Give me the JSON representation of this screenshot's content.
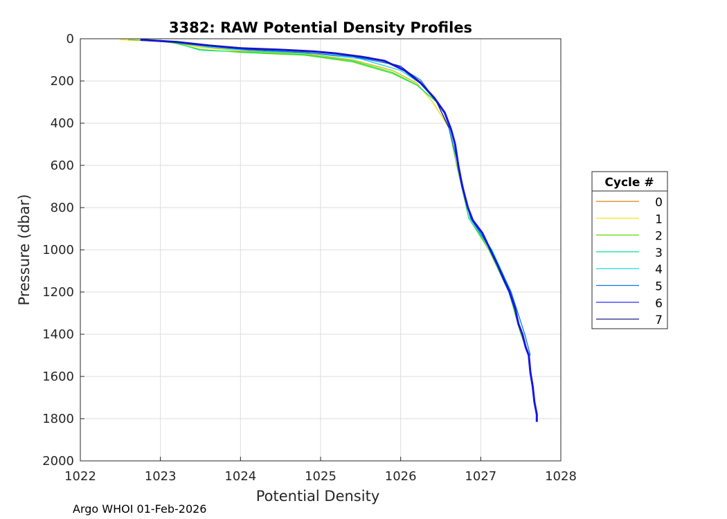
{
  "chart_data": {
    "type": "line",
    "title": "3382: RAW Potential Density Profiles",
    "xlabel": "Potential Density",
    "ylabel": "Pressure (dbar)",
    "xlim": [
      1022,
      1028
    ],
    "ylim": [
      0,
      2000
    ],
    "y_reversed": true,
    "grid": true,
    "x_ticks": [
      "1022",
      "1023",
      "1024",
      "1025",
      "1026",
      "1027",
      "1028"
    ],
    "y_ticks": [
      "0",
      "200",
      "400",
      "600",
      "800",
      "1000",
      "1200",
      "1400",
      "1600",
      "1800",
      "2000"
    ],
    "legend": {
      "title": "Cycle #",
      "position": "right"
    },
    "series": [
      {
        "name": "0",
        "color": "#d4840a",
        "points": [
          [
            1022.6,
            5
          ],
          [
            1023.1,
            12
          ],
          [
            1023.5,
            40
          ],
          [
            1024.0,
            58
          ],
          [
            1024.8,
            70
          ],
          [
            1025.4,
            100
          ],
          [
            1025.9,
            150
          ],
          [
            1026.2,
            210
          ],
          [
            1026.4,
            300
          ],
          [
            1026.6,
            420
          ]
        ]
      },
      {
        "name": "1",
        "color": "#f2e600",
        "points": [
          [
            1022.5,
            5
          ],
          [
            1023.0,
            12
          ],
          [
            1023.5,
            40
          ],
          [
            1024.0,
            60
          ],
          [
            1024.8,
            72
          ],
          [
            1025.4,
            102
          ],
          [
            1025.9,
            152
          ],
          [
            1026.2,
            212
          ],
          [
            1026.4,
            300
          ],
          [
            1026.6,
            420
          ]
        ]
      },
      {
        "name": "2",
        "color": "#5ed900",
        "points": [
          [
            1022.6,
            5
          ],
          [
            1023.1,
            14
          ],
          [
            1023.5,
            50
          ],
          [
            1024.0,
            65
          ],
          [
            1024.8,
            78
          ],
          [
            1025.4,
            110
          ],
          [
            1025.9,
            165
          ],
          [
            1026.2,
            220
          ],
          [
            1026.45,
            300
          ],
          [
            1026.6,
            420
          ],
          [
            1026.7,
            600
          ],
          [
            1026.85,
            850
          ],
          [
            1027.1,
            1000
          ],
          [
            1027.35,
            1200
          ],
          [
            1027.5,
            1400
          ],
          [
            1027.6,
            1500
          ]
        ]
      },
      {
        "name": "3",
        "color": "#00e68a",
        "points": [
          [
            1022.8,
            6
          ],
          [
            1023.2,
            20
          ],
          [
            1023.5,
            55
          ],
          [
            1024.0,
            62
          ],
          [
            1024.8,
            75
          ],
          [
            1025.4,
            105
          ],
          [
            1025.9,
            160
          ],
          [
            1026.2,
            218
          ],
          [
            1026.45,
            300
          ],
          [
            1026.6,
            420
          ],
          [
            1026.72,
            600
          ],
          [
            1026.85,
            850
          ],
          [
            1027.12,
            1000
          ],
          [
            1027.35,
            1200
          ],
          [
            1027.52,
            1400
          ],
          [
            1027.6,
            1500
          ]
        ]
      },
      {
        "name": "4",
        "color": "#00d5d5",
        "points": [
          [
            1022.8,
            6
          ],
          [
            1023.2,
            18
          ],
          [
            1023.6,
            40
          ],
          [
            1024.1,
            55
          ],
          [
            1024.9,
            70
          ],
          [
            1025.5,
            95
          ],
          [
            1026.0,
            150
          ],
          [
            1026.25,
            212
          ],
          [
            1026.45,
            300
          ],
          [
            1026.6,
            420
          ],
          [
            1026.72,
            600
          ],
          [
            1026.87,
            850
          ],
          [
            1027.14,
            1000
          ],
          [
            1027.38,
            1200
          ],
          [
            1027.55,
            1400
          ],
          [
            1027.62,
            1500
          ]
        ]
      },
      {
        "name": "5",
        "color": "#0a72e0",
        "points": [
          [
            1022.75,
            5
          ],
          [
            1023.2,
            15
          ],
          [
            1023.6,
            35
          ],
          [
            1024.1,
            52
          ],
          [
            1024.8,
            65
          ],
          [
            1025.4,
            85
          ],
          [
            1025.95,
            125
          ],
          [
            1026.25,
            195
          ],
          [
            1026.45,
            300
          ],
          [
            1026.6,
            420
          ],
          [
            1026.72,
            600
          ],
          [
            1026.87,
            850
          ],
          [
            1027.13,
            1000
          ],
          [
            1027.38,
            1200
          ],
          [
            1027.55,
            1400
          ],
          [
            1027.62,
            1500
          ]
        ]
      },
      {
        "name": "6",
        "color": "#1414f0",
        "points": [
          [
            1022.75,
            5
          ],
          [
            1023.2,
            15
          ],
          [
            1023.6,
            32
          ],
          [
            1024.0,
            45
          ],
          [
            1024.5,
            52
          ],
          [
            1024.9,
            60
          ],
          [
            1025.2,
            70
          ],
          [
            1025.5,
            85
          ],
          [
            1025.8,
            105
          ],
          [
            1026.05,
            150
          ],
          [
            1026.25,
            210
          ],
          [
            1026.42,
            280
          ],
          [
            1026.55,
            350
          ],
          [
            1026.63,
            430
          ],
          [
            1026.68,
            500
          ],
          [
            1026.72,
            600
          ],
          [
            1026.77,
            700
          ],
          [
            1026.84,
            800
          ],
          [
            1026.9,
            860
          ],
          [
            1027.02,
            920
          ],
          [
            1027.12,
            1000
          ],
          [
            1027.22,
            1080
          ],
          [
            1027.3,
            1150
          ],
          [
            1027.36,
            1200
          ],
          [
            1027.43,
            1280
          ],
          [
            1027.47,
            1350
          ],
          [
            1027.52,
            1400
          ],
          [
            1027.56,
            1460
          ],
          [
            1027.6,
            1500
          ],
          [
            1027.62,
            1580
          ],
          [
            1027.65,
            1650
          ],
          [
            1027.67,
            1720
          ],
          [
            1027.7,
            1780
          ],
          [
            1027.7,
            1815
          ]
        ]
      },
      {
        "name": "7",
        "color": "#1b1b8c",
        "points": [
          [
            1022.8,
            5
          ],
          [
            1023.2,
            14
          ],
          [
            1023.7,
            33
          ],
          [
            1024.1,
            45
          ],
          [
            1024.7,
            55
          ],
          [
            1025.2,
            68
          ],
          [
            1025.6,
            88
          ],
          [
            1026.0,
            130
          ],
          [
            1026.25,
            205
          ],
          [
            1026.45,
            300
          ],
          [
            1026.6,
            420
          ]
        ]
      }
    ]
  },
  "footer_text": "Argo WHOI 01-Feb-2026"
}
